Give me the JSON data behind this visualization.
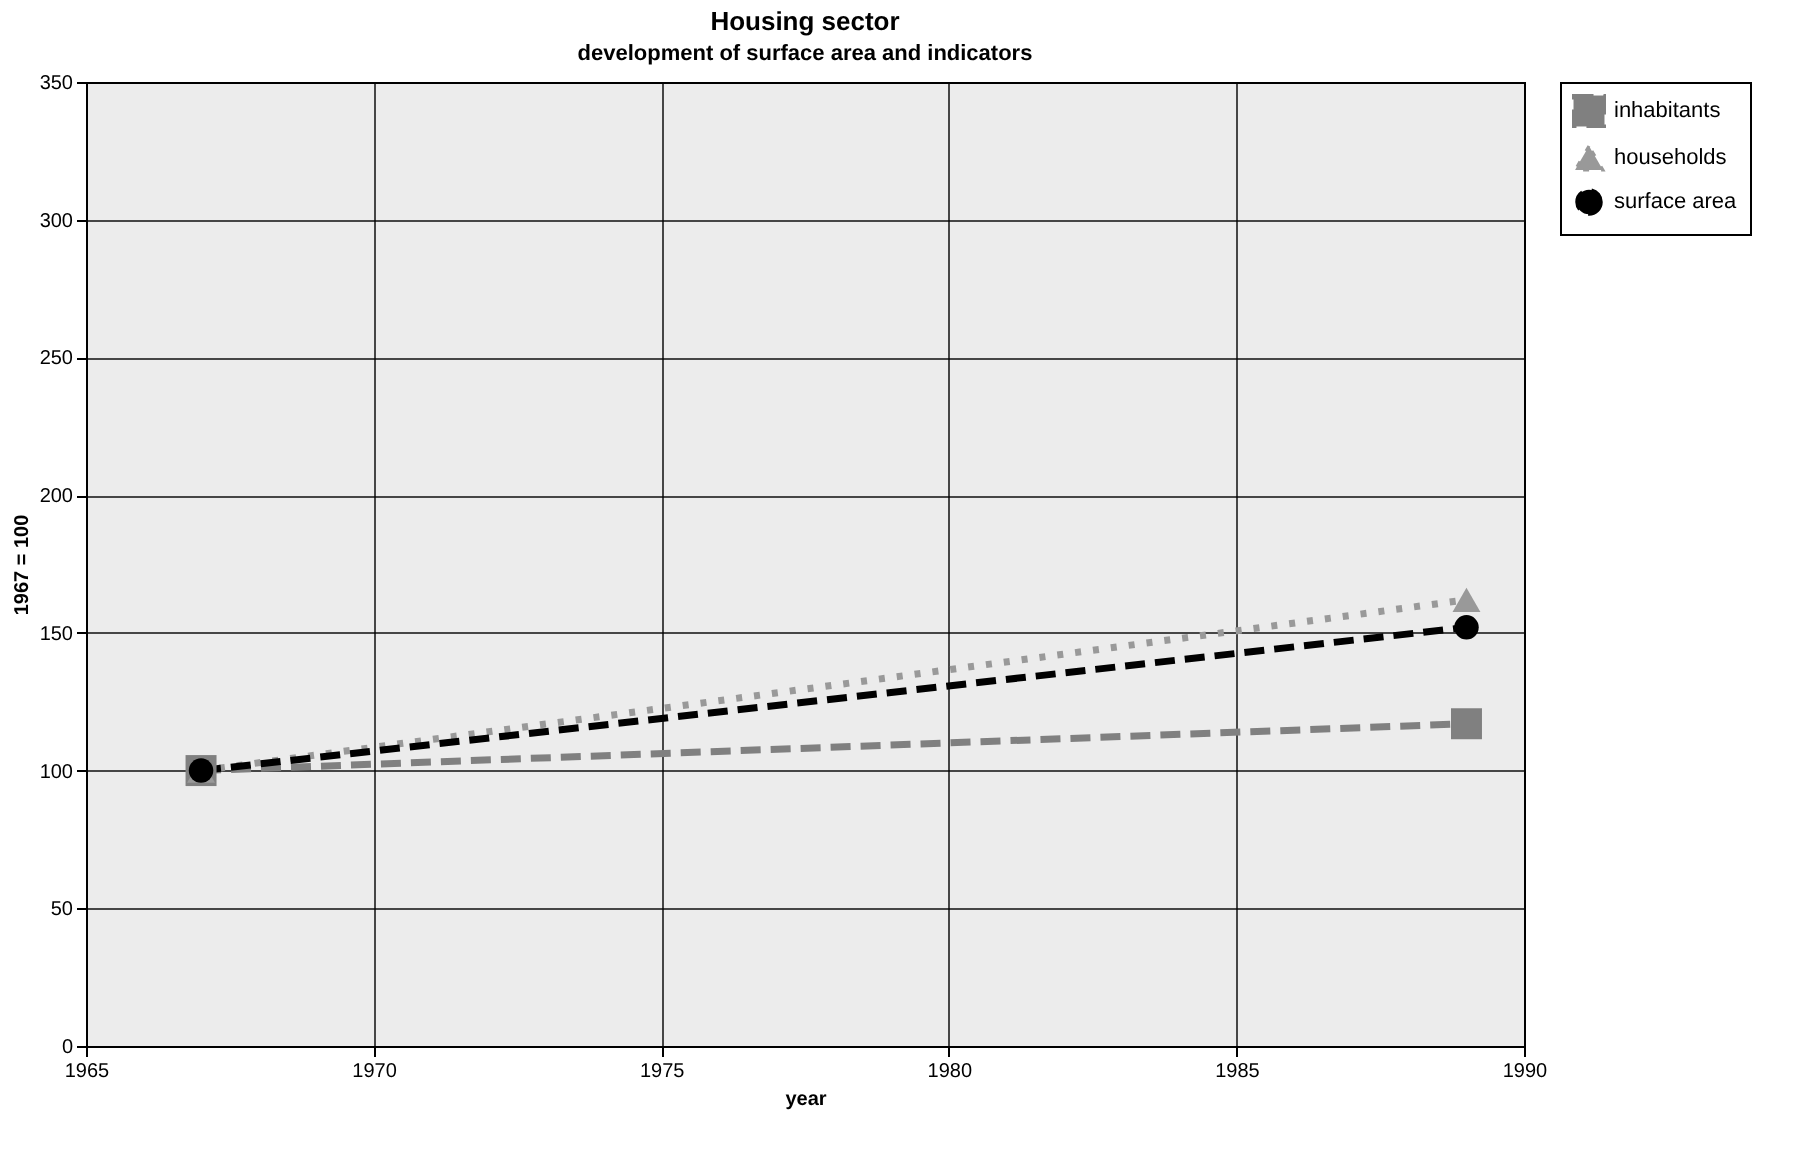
{
  "chart_data": {
    "type": "line",
    "title": "Housing sector",
    "subtitle": "development of surface area and indicators",
    "xlabel": "year",
    "ylabel": "1967 = 100",
    "x": [
      1967,
      1989
    ],
    "series": [
      {
        "name": "inhabitants",
        "color": "#808080",
        "values": [
          100,
          117
        ],
        "marker": "square",
        "line_style": "dashed"
      },
      {
        "name": "households",
        "color": "#999999",
        "values": [
          100,
          162
        ],
        "marker": "triangle",
        "line_style": "dotted"
      },
      {
        "name": "surface area",
        "color": "#000000",
        "values": [
          100,
          152
        ],
        "marker": "circle",
        "line_style": "dashed"
      }
    ],
    "xlim": [
      1965,
      1990
    ],
    "xticks": [
      1965,
      1970,
      1975,
      1980,
      1985,
      1990
    ],
    "ylim": [
      0,
      350
    ],
    "yticks": [
      0,
      50,
      100,
      150,
      200,
      250,
      300,
      350
    ],
    "grid": true,
    "legend": "right"
  }
}
